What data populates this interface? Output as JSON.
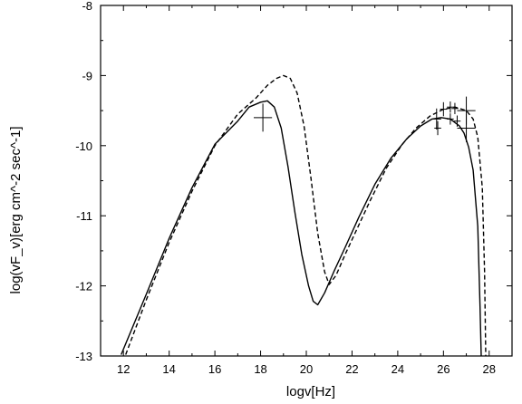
{
  "chart_data": {
    "type": "line",
    "xlabel": "logv[Hz]",
    "ylabel": "log(vF_v)[erg cm^-2 sec^-1]",
    "xlim": [
      11,
      29
    ],
    "ylim": [
      -13,
      -8
    ],
    "x_ticks": [
      12,
      14,
      16,
      18,
      20,
      22,
      24,
      26,
      28
    ],
    "x_tick_labels": [
      "12",
      "14",
      "16",
      "18",
      "20",
      "22",
      "24",
      "26",
      "28"
    ],
    "y_ticks": [
      -13,
      -12,
      -11,
      -10,
      -9,
      -8
    ],
    "y_tick_labels": [
      "-13",
      "-12",
      "-11",
      "-10",
      "-9",
      "-8"
    ],
    "grid": false,
    "series": [
      {
        "style": "solid",
        "x": [
          11.9,
          13,
          14,
          15,
          16,
          17,
          17.5,
          18,
          18.3,
          18.6,
          18.9,
          19.2,
          19.5,
          19.8,
          20.1,
          20.3,
          20.5,
          20.8,
          21.2,
          21.7,
          22.3,
          23,
          23.7,
          24.4,
          25,
          25.5,
          25.9,
          26.3,
          26.7,
          26.9,
          27.1,
          27.3,
          27.5,
          27.6,
          27.65
        ],
        "y": [
          -12.98,
          -12.12,
          -11.32,
          -10.6,
          -9.98,
          -9.65,
          -9.45,
          -9.38,
          -9.36,
          -9.45,
          -9.75,
          -10.3,
          -10.95,
          -11.55,
          -12.0,
          -12.22,
          -12.27,
          -12.1,
          -11.8,
          -11.45,
          -11.02,
          -10.55,
          -10.18,
          -9.9,
          -9.72,
          -9.62,
          -9.6,
          -9.62,
          -9.72,
          -9.82,
          -10.02,
          -10.35,
          -11.15,
          -12.3,
          -13.0
        ]
      },
      {
        "style": "dashed",
        "x": [
          12.1,
          13,
          14,
          15,
          16,
          17,
          17.8,
          18.3,
          18.7,
          19.0,
          19.3,
          19.6,
          19.9,
          20.2,
          20.5,
          20.8,
          21.0,
          21.3,
          21.7,
          22.2,
          22.8,
          23.5,
          24.2,
          24.8,
          25.4,
          26.0,
          26.5,
          27.0,
          27.3,
          27.5,
          27.7,
          27.8,
          27.85
        ],
        "y": [
          -12.98,
          -12.2,
          -11.38,
          -10.65,
          -10.0,
          -9.55,
          -9.32,
          -9.14,
          -9.04,
          -9.0,
          -9.04,
          -9.25,
          -9.72,
          -10.45,
          -11.25,
          -11.8,
          -11.98,
          -11.85,
          -11.55,
          -11.2,
          -10.78,
          -10.32,
          -9.98,
          -9.75,
          -9.58,
          -9.48,
          -9.45,
          -9.5,
          -9.62,
          -9.88,
          -10.6,
          -11.8,
          -13.0
        ]
      }
    ],
    "error_crosses": [
      {
        "x": 18.1,
        "y": -9.6,
        "xerr": 0.4,
        "yerr": 0.2
      },
      {
        "x": 25.7,
        "y": -9.62,
        "xerr": 0.2,
        "yerr": 0.15
      },
      {
        "x": 25.75,
        "y": -9.75,
        "xerr": 0.15,
        "yerr": 0.1
      },
      {
        "x": 26.0,
        "y": -9.48,
        "xerr": 0.15,
        "yerr": 0.1
      },
      {
        "x": 26.3,
        "y": -9.45,
        "xerr": 0.15,
        "yerr": 0.08
      },
      {
        "x": 26.5,
        "y": -9.47,
        "xerr": 0.15,
        "yerr": 0.08
      },
      {
        "x": 26.3,
        "y": -9.62,
        "xerr": 0.15,
        "yerr": 0.08
      },
      {
        "x": 26.6,
        "y": -9.65,
        "xerr": 0.15,
        "yerr": 0.08
      },
      {
        "x": 27.0,
        "y": -9.5,
        "xerr": 0.4,
        "yerr": 0.2
      },
      {
        "x": 27.0,
        "y": -9.75,
        "xerr": 0.4,
        "yerr": 0.2
      }
    ]
  }
}
